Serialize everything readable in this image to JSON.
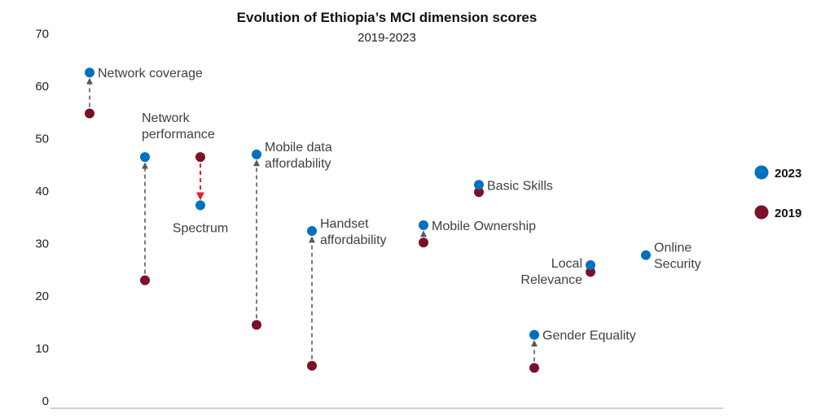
{
  "chart_data": {
    "type": "scatter",
    "title": "Evolution of Ethiopia’s MCI dimension scores",
    "subtitle": "2019-2023",
    "ylim": [
      0,
      70
    ],
    "yticks": [
      "0",
      "10",
      "20",
      "30",
      "40",
      "50",
      "60",
      "70"
    ],
    "grid": false,
    "legend_position": "right",
    "colors": {
      "2023": "#0070c0",
      "2019": "#7b1128",
      "connector": "#595959",
      "decline": "#e0202a"
    },
    "series": [
      {
        "name": "2023",
        "color": "#0070c0"
      },
      {
        "name": "2019",
        "color": "#7b1128"
      }
    ],
    "dimensions": [
      {
        "label": [
          "Network coverage"
        ],
        "v2019": 54.8,
        "v2023": 62.6,
        "label_pos": "right"
      },
      {
        "label": [
          "Network",
          "performance"
        ],
        "v2019": 23.0,
        "v2023": 46.5,
        "label_pos": "above"
      },
      {
        "label": [
          "Spectrum"
        ],
        "v2019": 46.5,
        "v2023": 37.3,
        "label_pos": "below"
      },
      {
        "label": [
          "Mobile data",
          "affordability"
        ],
        "v2019": 14.5,
        "v2023": 47.0,
        "label_pos": "right"
      },
      {
        "label": [
          "Handset",
          "affordability"
        ],
        "v2019": 6.7,
        "v2023": 32.4,
        "label_pos": "right"
      },
      {
        "label": [
          "Mobile Ownership"
        ],
        "v2019": 30.2,
        "v2023": 33.5,
        "label_pos": "right"
      },
      {
        "label": [
          "Basic Skills"
        ],
        "v2019": 39.8,
        "v2023": 41.2,
        "label_pos": "right"
      },
      {
        "label": [
          "Gender Equality"
        ],
        "v2019": 6.3,
        "v2023": 12.6,
        "label_pos": "right"
      },
      {
        "label": [
          "Local",
          "Relevance"
        ],
        "v2019": 24.6,
        "v2023": 25.9,
        "label_pos": "left"
      },
      {
        "label": [
          "Online",
          "Security"
        ],
        "v2019": null,
        "v2023": 27.8,
        "label_pos": "right"
      }
    ]
  }
}
